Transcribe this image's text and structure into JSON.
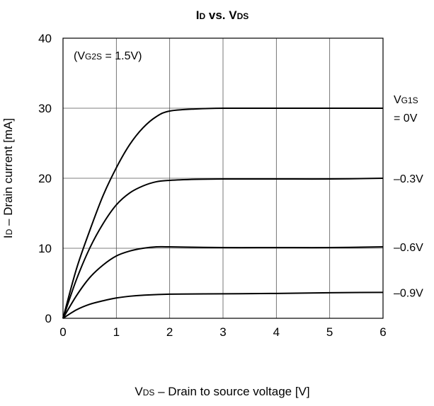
{
  "chart_data": {
    "type": "line",
    "title": {
      "id_main": "I",
      "id_sub": "D",
      "mid": " vs. ",
      "vds_main": "V",
      "vds_sub": "DS"
    },
    "xlabel": {
      "main": "V",
      "sub": "DS",
      "rest": " – Drain to source voltage [V]"
    },
    "ylabel": {
      "main": "I",
      "sub": "D",
      "rest": " – Drain current [mA]"
    },
    "xlim": [
      0,
      6
    ],
    "ylim": [
      0,
      40
    ],
    "x_ticks": [
      "0",
      "1",
      "2",
      "3",
      "4",
      "5",
      "6"
    ],
    "y_ticks": [
      "0",
      "10",
      "20",
      "30",
      "40"
    ],
    "grid": true,
    "annotation": {
      "open": "(V",
      "sub": "G2S",
      "rest": " = 1.5V)"
    },
    "legend_header": {
      "main": "V",
      "sub": "G1S"
    },
    "series": [
      {
        "name": "= 0V",
        "points": [
          [
            0,
            0
          ],
          [
            0.25,
            7
          ],
          [
            0.5,
            12.5
          ],
          [
            0.75,
            17.5
          ],
          [
            1,
            21.5
          ],
          [
            1.25,
            24.8
          ],
          [
            1.5,
            27.2
          ],
          [
            1.75,
            28.8
          ],
          [
            2,
            29.6
          ],
          [
            2.5,
            29.9
          ],
          [
            3,
            30
          ],
          [
            4,
            30
          ],
          [
            5,
            30
          ],
          [
            6,
            30
          ]
        ]
      },
      {
        "name": "–0.3V",
        "points": [
          [
            0,
            0
          ],
          [
            0.25,
            5.5
          ],
          [
            0.5,
            10
          ],
          [
            0.75,
            13.5
          ],
          [
            1,
            16.2
          ],
          [
            1.25,
            17.9
          ],
          [
            1.5,
            18.9
          ],
          [
            1.75,
            19.5
          ],
          [
            2,
            19.7
          ],
          [
            2.5,
            19.85
          ],
          [
            3,
            19.9
          ],
          [
            4,
            19.9
          ],
          [
            5,
            19.9
          ],
          [
            6,
            20
          ]
        ]
      },
      {
        "name": "–0.6V",
        "points": [
          [
            0,
            0
          ],
          [
            0.25,
            3.2
          ],
          [
            0.5,
            5.8
          ],
          [
            0.75,
            7.6
          ],
          [
            1,
            8.9
          ],
          [
            1.25,
            9.6
          ],
          [
            1.5,
            10
          ],
          [
            1.75,
            10.2
          ],
          [
            2,
            10.2
          ],
          [
            3,
            10.1
          ],
          [
            4,
            10.1
          ],
          [
            5,
            10.1
          ],
          [
            6,
            10.2
          ]
        ]
      },
      {
        "name": "–0.9V",
        "points": [
          [
            0,
            0
          ],
          [
            0.25,
            1.2
          ],
          [
            0.5,
            2.0
          ],
          [
            0.75,
            2.5
          ],
          [
            1,
            2.9
          ],
          [
            1.25,
            3.15
          ],
          [
            1.5,
            3.3
          ],
          [
            2,
            3.45
          ],
          [
            3,
            3.5
          ],
          [
            4,
            3.55
          ],
          [
            5,
            3.65
          ],
          [
            6,
            3.7
          ]
        ]
      }
    ]
  }
}
